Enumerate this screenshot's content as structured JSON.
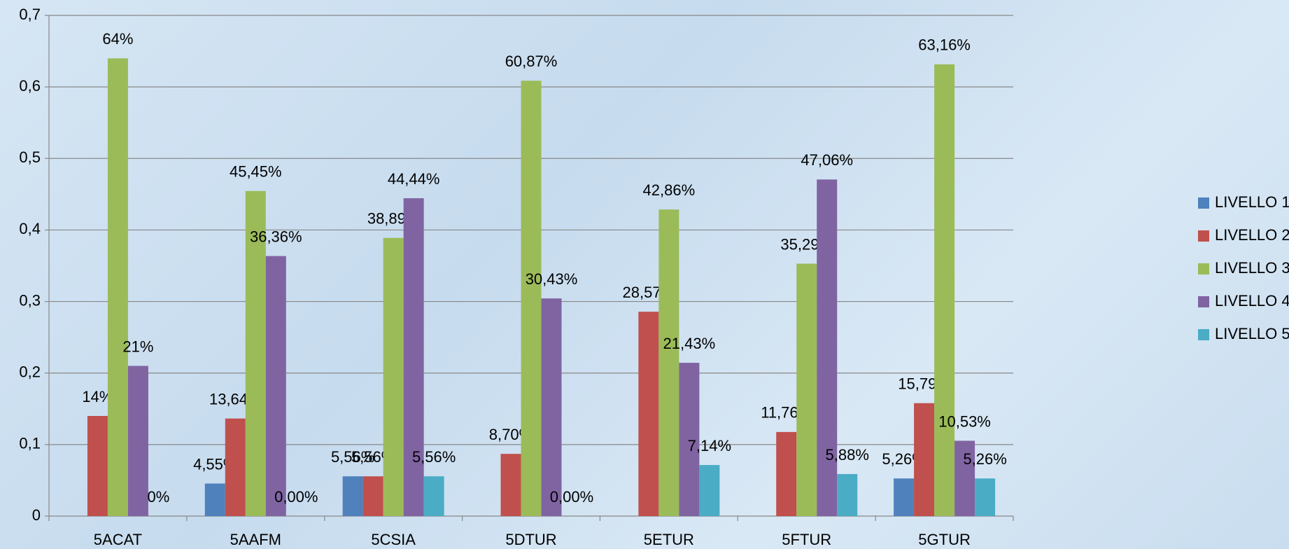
{
  "chart_data": {
    "type": "bar",
    "categories": [
      "5ACAT",
      "5AAFM",
      "5CSIA",
      "5DTUR",
      "5ETUR",
      "5FTUR",
      "5GTUR"
    ],
    "series": [
      {
        "name": "LIVELLO 1",
        "color": "#4f81bd",
        "values": [
          null,
          0.0455,
          0.0556,
          null,
          null,
          null,
          0.0526
        ],
        "value_labels": [
          null,
          "4,55%",
          "5,56%",
          null,
          null,
          null,
          "5,26%"
        ]
      },
      {
        "name": "LIVELLO 2",
        "color": "#c0504d",
        "values": [
          0.14,
          0.1364,
          0.0556,
          0.087,
          0.2857,
          0.1176,
          0.1579
        ],
        "value_labels": [
          "14%",
          "13,64%",
          "5,56%",
          "8,70%",
          "28,57%",
          "11,76%",
          "15,79%"
        ]
      },
      {
        "name": "LIVELLO 3",
        "color": "#9bbb59",
        "values": [
          0.64,
          0.4545,
          0.3889,
          0.6087,
          0.4286,
          0.3529,
          0.6316
        ],
        "value_labels": [
          "64%",
          "45,45%",
          "38,89%",
          "60,87%",
          "42,86%",
          "35,29%",
          "63,16%"
        ]
      },
      {
        "name": "LIVELLO 4",
        "color": "#8064a2",
        "values": [
          0.21,
          0.3636,
          0.4444,
          0.3043,
          0.2143,
          0.4706,
          0.1053
        ],
        "value_labels": [
          "21%",
          "36,36%",
          "44,44%",
          "30,43%",
          "21,43%",
          "47,06%",
          "10,53%"
        ]
      },
      {
        "name": "LIVELLO 5",
        "color": "#4bacc6",
        "values": [
          0,
          0,
          0.0556,
          0,
          0.0714,
          0.0588,
          0.0526
        ],
        "value_labels": [
          "0%",
          "0,00%",
          "5,56%",
          "0,00%",
          "7,14%",
          "5,88%",
          "5,26%"
        ]
      }
    ],
    "ylim": [
      0,
      0.7
    ],
    "yticks": [
      0,
      {
        "value": 0.1,
        "label": "0,1"
      },
      {
        "value": 0.2,
        "label": "0,2"
      },
      {
        "value": 0.3,
        "label": "0,3"
      },
      {
        "value": 0.4,
        "label": "0,4"
      },
      {
        "value": 0.5,
        "label": "0,5"
      },
      {
        "value": 0.6,
        "label": "0,6"
      },
      {
        "value": 0.7,
        "label": "0,7"
      }
    ],
    "grid": true,
    "legend": "right"
  }
}
